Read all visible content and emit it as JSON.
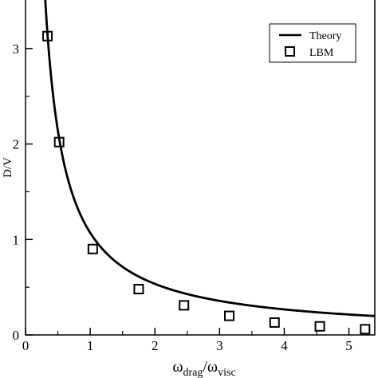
{
  "chart_data": {
    "type": "line",
    "xlabel": {
      "main": "ω",
      "main_sub": "drag",
      "sep": "/ω",
      "sep_sub": "visc"
    },
    "ylabel": "D/V",
    "xlim": [
      0,
      5.4
    ],
    "ylim": [
      0,
      3.5
    ],
    "x_ticks": [
      0,
      1,
      2,
      3,
      4,
      5
    ],
    "y_ticks": [
      0,
      1,
      2,
      3
    ],
    "series": [
      {
        "name": "Theory",
        "style": "line",
        "color": "#000000",
        "curve": "1.07/x",
        "x_start": 0.305,
        "x_end": 5.4
      },
      {
        "name": "LBM",
        "style": "open-square",
        "color": "#000000",
        "x": [
          0.34,
          0.52,
          1.04,
          1.75,
          2.45,
          3.15,
          3.85,
          4.55,
          5.25
        ],
        "y": [
          3.13,
          2.02,
          0.9,
          0.48,
          0.31,
          0.2,
          0.13,
          0.09,
          0.06
        ]
      }
    ],
    "legend": {
      "position": "top-right",
      "entries": [
        "Theory",
        "LBM"
      ]
    },
    "grid": false
  }
}
